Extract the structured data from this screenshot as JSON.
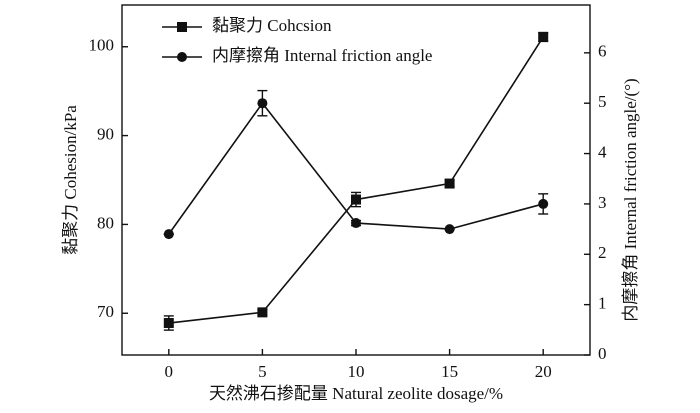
{
  "chart_data": {
    "type": "line",
    "x_label": "天然沸石掺配量 Natural zeolite dosage/%",
    "y_label": "黏聚力 Cohesion/kPa",
    "y2_label": "内摩擦角 Internal friction angle/(°)",
    "x": [
      0,
      5,
      10,
      15,
      20
    ],
    "xlim": [
      -2.5,
      22.5
    ],
    "xticks": [
      0,
      5,
      10,
      15,
      20
    ],
    "ylim": [
      65.3,
      104.7
    ],
    "yticks": [
      70,
      80,
      90,
      100
    ],
    "y2lim": [
      0,
      6.95
    ],
    "y2ticks": [
      0,
      1,
      2,
      3,
      4,
      5,
      6
    ],
    "legend": "upper left",
    "grid": false,
    "series": [
      {
        "name": "黏聚力 Cohcsion",
        "color": "#111111",
        "marker": "square",
        "values": [
          68.9,
          70.1,
          82.8,
          84.6,
          101.1
        ],
        "errors": [
          0.8,
          0.3,
          0.8,
          0.4,
          0.5
        ]
      },
      {
        "name": "内摩擦角 Internal friction angle",
        "color": "#111111",
        "marker": "circle",
        "axis": "y2",
        "values": [
          2.4,
          5.0,
          2.62,
          2.5,
          3.0
        ],
        "errors": [
          0,
          0.25,
          0.05,
          0,
          0.2
        ]
      }
    ]
  }
}
